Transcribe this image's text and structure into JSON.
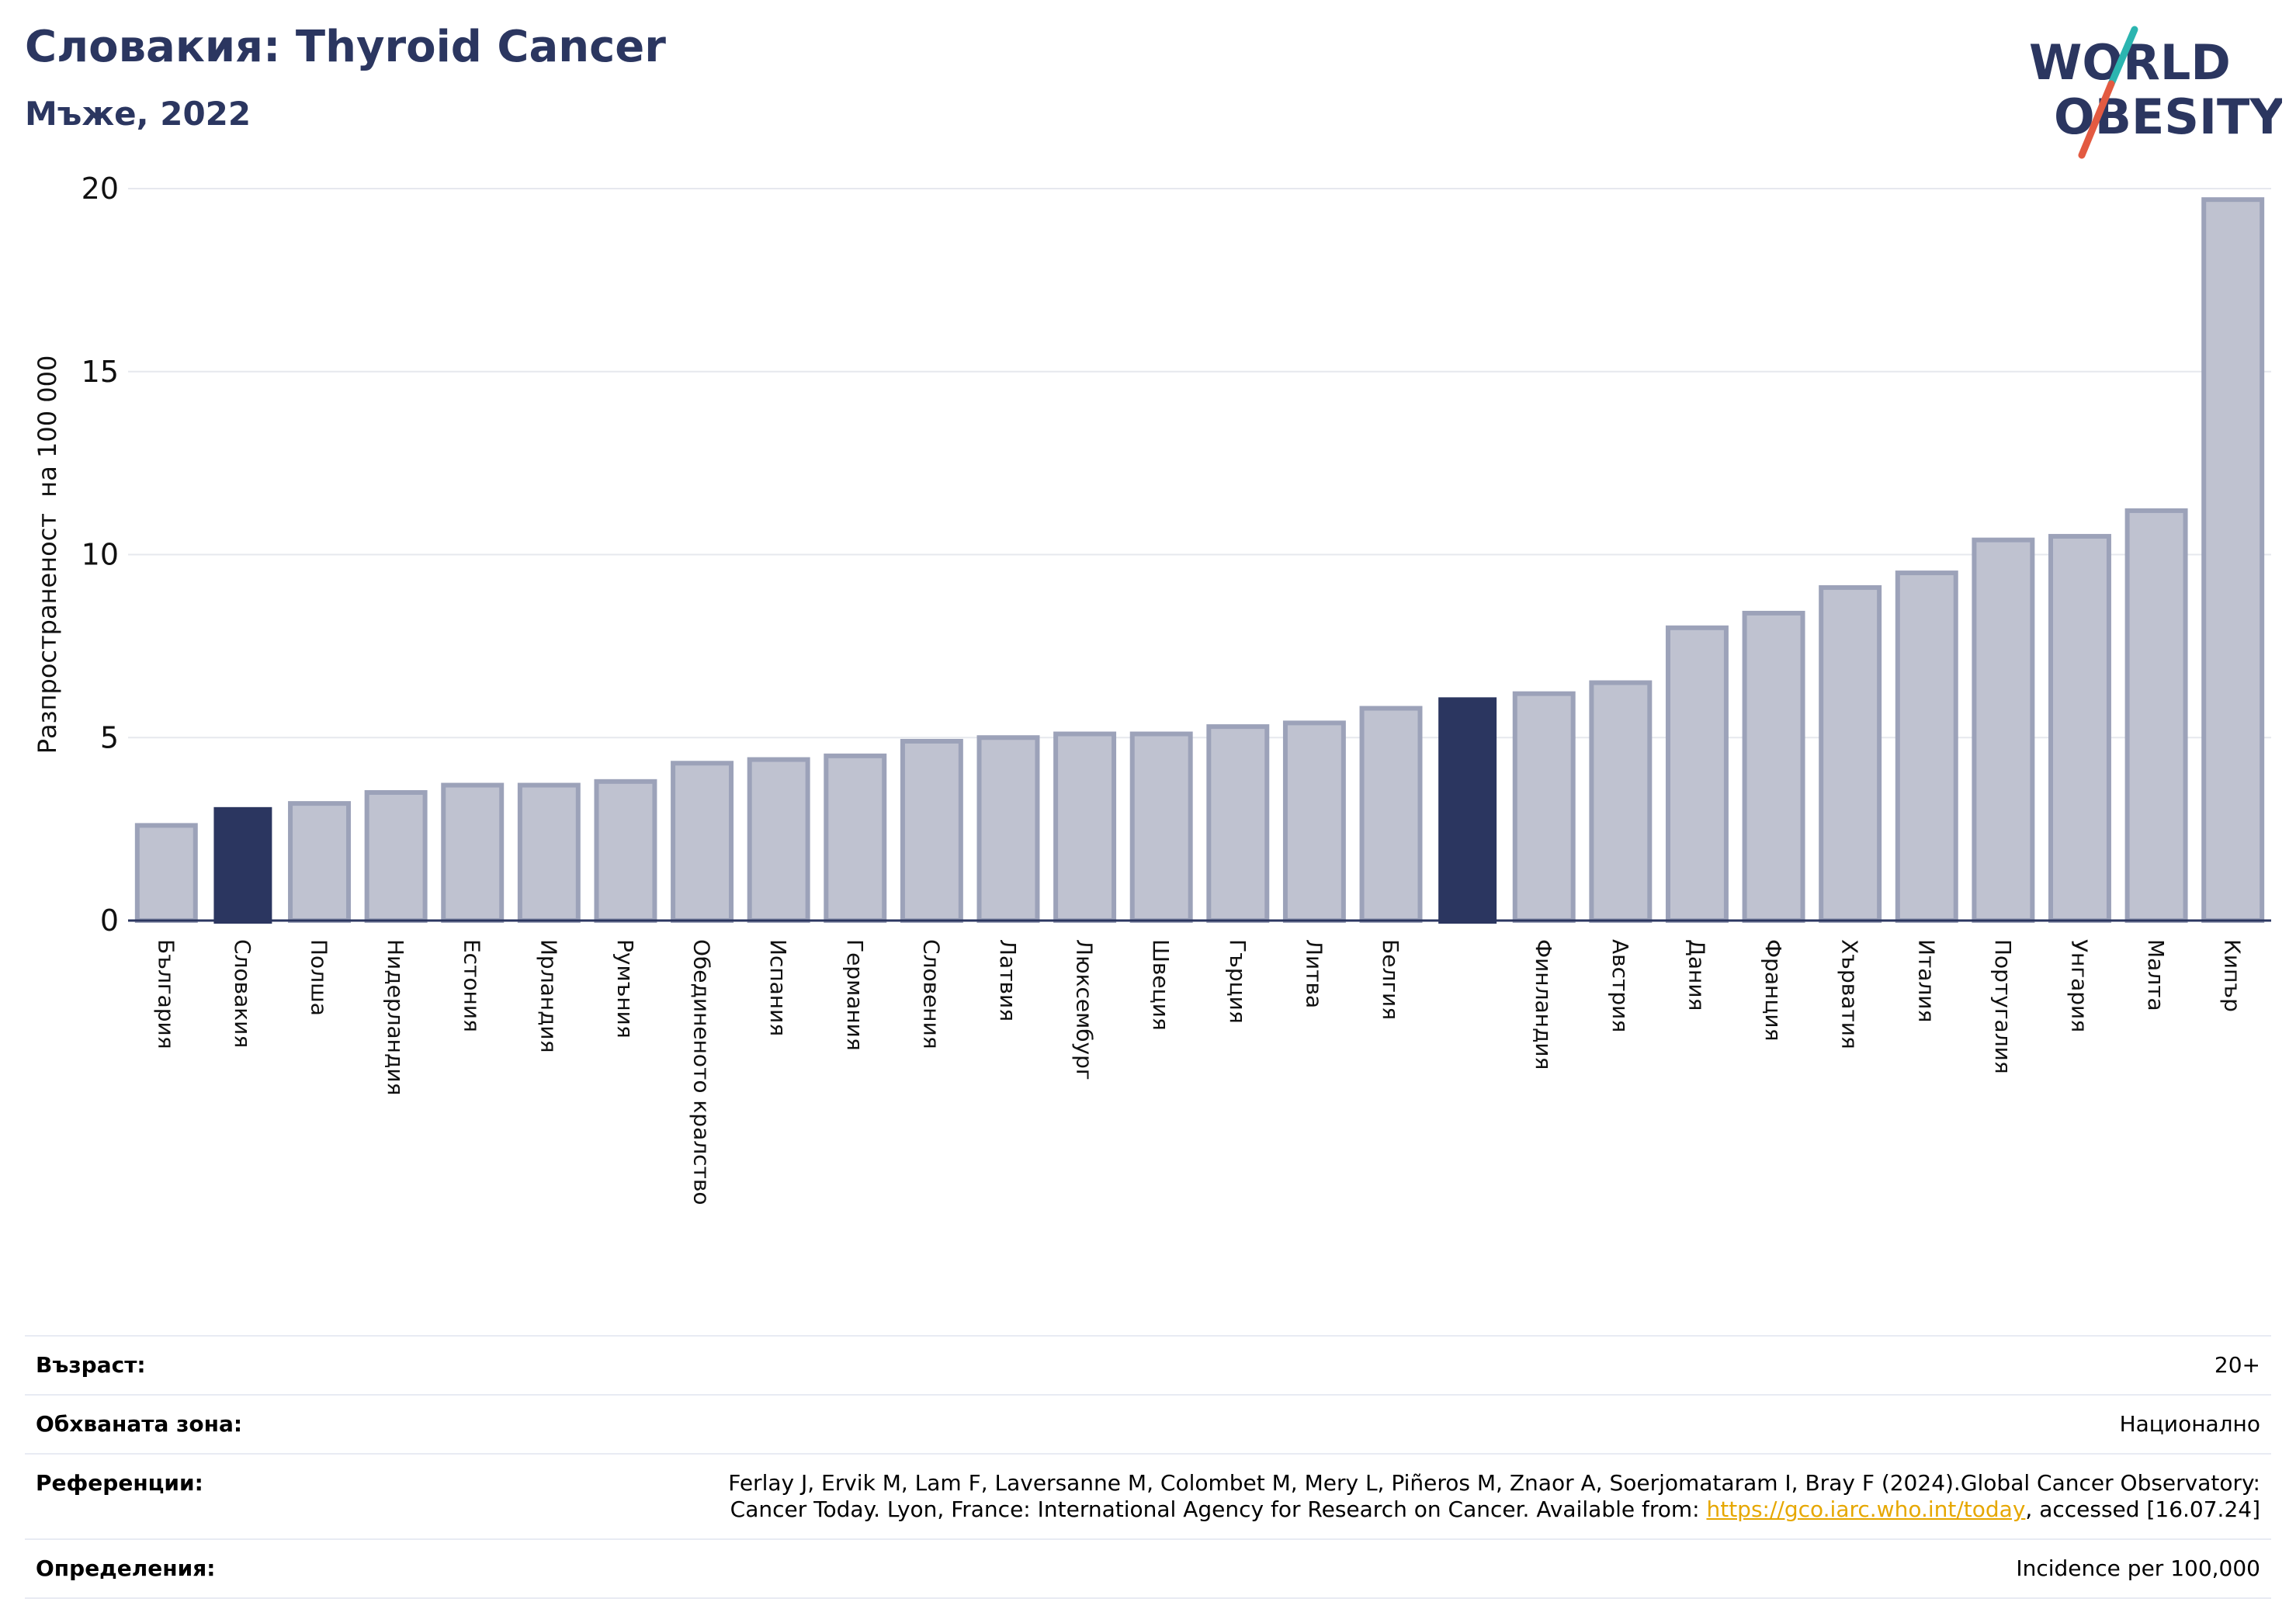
{
  "header": {
    "title": "Словакия: Thyroid Cancer",
    "subtitle": "Мъже, 2022"
  },
  "logo": {
    "line1": "WORLD",
    "line2": "OBESITY",
    "colors": {
      "text": "#2b3660",
      "slash_teal": "#2bb5b0",
      "slash_orange": "#e35a41"
    }
  },
  "chart_data": {
    "type": "bar",
    "ylabel": "Разпространеност  на 100 000",
    "ylim": [
      0,
      20
    ],
    "yticks": [
      0,
      5,
      10,
      15,
      20
    ],
    "grid": true,
    "colors": {
      "bar_default": "#bfc2d0",
      "bar_default_border": "#9ca2b9",
      "bar_highlight": "#2b3660"
    },
    "categories": [
      "България",
      "Словакия",
      "Полша",
      "Нидерландия",
      "Естония",
      "Ирландия",
      "Румъния",
      "Обединеното кралство",
      "Испания",
      "Германия",
      "Словения",
      "Латвия",
      "Люксембург",
      "Швеция",
      "Гърция",
      "Литва",
      "Белгия",
      "",
      "Финландия",
      "Австрия",
      "Дания",
      "Франция",
      "Хърватия",
      "Италия",
      "Португалия",
      "Унгария",
      "Малта",
      "Кипър"
    ],
    "values": [
      2.6,
      3.1,
      3.2,
      3.5,
      3.7,
      3.7,
      3.8,
      4.3,
      4.4,
      4.5,
      4.9,
      5.0,
      5.1,
      5.1,
      5.3,
      5.4,
      5.8,
      6.1,
      6.2,
      6.5,
      8.0,
      8.4,
      9.1,
      9.5,
      10.4,
      10.5,
      11.2,
      19.7
    ],
    "highlighted": [
      1,
      17
    ]
  },
  "info": {
    "age_label": "Възраст:",
    "age_value": "20+",
    "area_label": "Обхваната зона:",
    "area_value": "Национално",
    "ref_label": "Референции:",
    "ref_text_1": "Ferlay J, Ervik M, Lam F, Laversanne M, Colombet M, Mery L, Piñeros M, Znaor A, Soerjomataram I, Bray F (2024).Global Cancer Observatory:",
    "ref_text_2": "Cancer Today. Lyon, France: International Agency for Research on Cancer. Available from: ",
    "ref_link": "https://gco.iarc.who.int/today",
    "ref_text_3": ", accessed [16.07.24]",
    "def_label": "Определения:",
    "def_value": "Incidence per 100,000"
  }
}
